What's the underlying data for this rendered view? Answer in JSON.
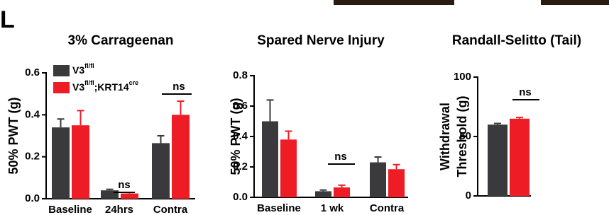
{
  "panel_label": "L",
  "chart_data": [
    {
      "type": "bar",
      "title": "3% Carrageenan",
      "y_label": [
        "50% PWT (g)"
      ],
      "categories": [
        "Baseline",
        "24hrs",
        "Contra"
      ],
      "series": [
        {
          "name": [
            {
              "text": "V3"
            },
            {
              "text": "fl/fl",
              "sup": true
            }
          ],
          "color": "#3a3a3c",
          "values": [
            0.34,
            0.04,
            0.265
          ],
          "errors": [
            0.04,
            0.005,
            0.035
          ]
        },
        {
          "name": [
            {
              "text": "V3"
            },
            {
              "text": "fl/fl",
              "sup": true
            },
            {
              "text": ";KRT14"
            },
            {
              "text": "cre",
              "sup": true
            }
          ],
          "color": "#ee1c24",
          "values": [
            0.35,
            0.025,
            0.4
          ],
          "errors": [
            0.07,
            0.005,
            0.065
          ]
        }
      ],
      "ylim": [
        0,
        0.6
      ],
      "yticks": [
        {
          "value": 0,
          "label": "0.0"
        },
        0.2,
        0.4,
        0.6
      ],
      "annotations": [
        "ns",
        "ns"
      ],
      "legend": true
    },
    {
      "type": "bar",
      "title": "Spared Nerve Injury",
      "y_label": [
        "50% PWT (g)"
      ],
      "categories": [
        "Baseline",
        "1 wk",
        "Contra"
      ],
      "series": [
        {
          "color": "#3a3a3c",
          "values": [
            0.5,
            0.04,
            0.23
          ],
          "errors": [
            0.14,
            0.008,
            0.035
          ]
        },
        {
          "color": "#ee1c24",
          "values": [
            0.38,
            0.065,
            0.185
          ],
          "errors": [
            0.055,
            0.015,
            0.03
          ]
        }
      ],
      "ylim": [
        0,
        0.8
      ],
      "yticks": [
        {
          "value": 0,
          "label": "0.0"
        },
        0.2,
        0.4,
        0.6,
        0.8
      ],
      "annotations": [
        "ns"
      ],
      "legend": false
    },
    {
      "type": "bar",
      "title": "Randall-Selitto (Tail)",
      "y_label": [
        "Withdrawal",
        "Threshold (g)"
      ],
      "categories": [
        null
      ],
      "series": [
        {
          "color": "#3a3a3c",
          "values": [
            60
          ],
          "errors": [
            1
          ]
        },
        {
          "color": "#ee1c24",
          "values": [
            65
          ],
          "errors": [
            1
          ]
        }
      ],
      "ylim": [
        0,
        100
      ],
      "yticks": [
        0,
        50,
        100
      ],
      "annotations": [
        "ns"
      ],
      "legend": false
    }
  ]
}
